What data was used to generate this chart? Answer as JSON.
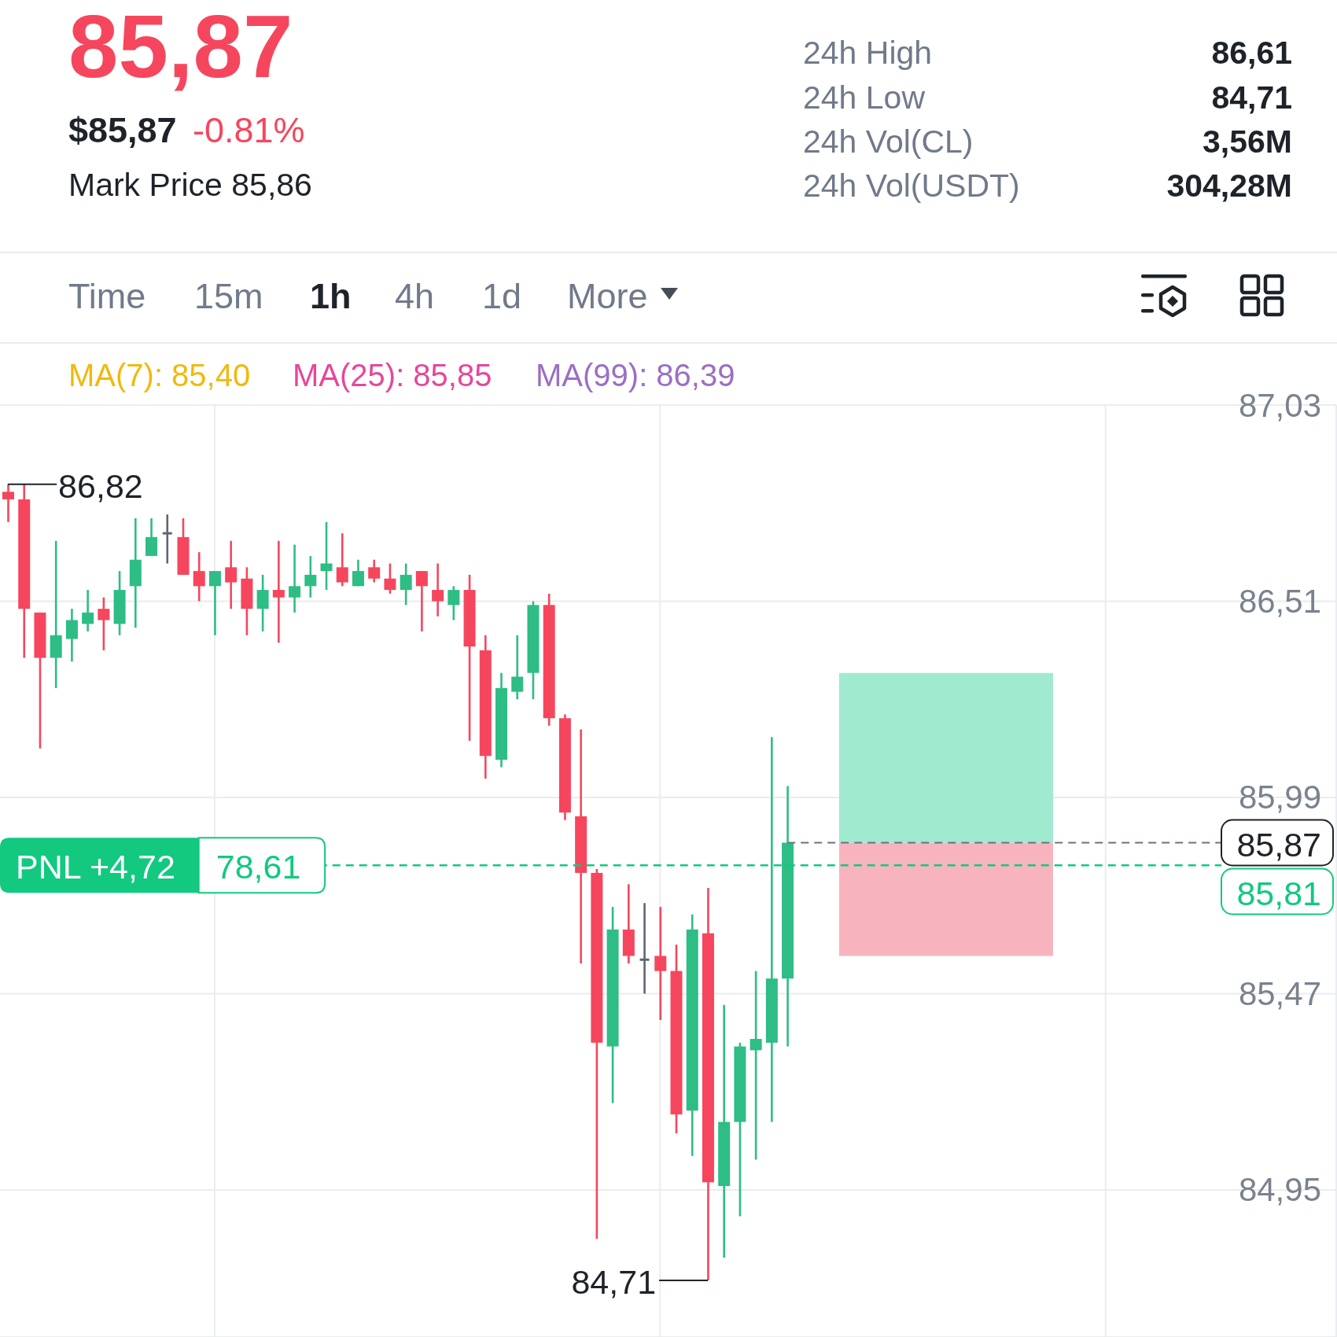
{
  "chart_data": {
    "type": "candlestick",
    "title": "85,87",
    "annotations": [
      "$85,87",
      "-0.81%",
      "Mark Price 85,86",
      "24h High",
      "86,61",
      "24h Low",
      "84,71",
      "24h Vol(CL)",
      "3,56M",
      "24h Vol(USDT)",
      "304,28M",
      "Time",
      "15m",
      "1h",
      "4h",
      "1d",
      "More",
      "MA(7): 85,40",
      "MA(25): 85,85",
      "MA(99): 86,39",
      "86,82",
      "84,71",
      "78,61",
      "85,81"
    ],
    "categories": [
      null,
      null,
      null,
      null,
      null,
      null,
      null,
      null,
      null,
      null,
      null,
      null,
      null,
      null,
      null,
      null,
      null,
      null,
      null,
      null,
      null,
      null,
      null,
      null,
      null,
      null,
      null,
      null,
      null,
      null,
      null,
      null,
      null,
      null,
      null,
      null,
      null,
      null,
      null,
      null,
      null,
      null,
      null,
      null,
      null,
      null,
      null,
      null,
      null,
      null,
      null,
      null,
      null,
      null,
      null,
      null,
      null,
      null,
      null,
      null,
      null,
      null,
      null,
      null,
      null,
      null,
      null,
      null,
      null,
      null,
      null,
      null,
      null,
      null,
      null,
      null,
      null,
      null,
      null,
      null,
      null,
      null,
      null,
      null
    ],
    "ohlc": [
      [
        86.8,
        86.82,
        86.72,
        86.78
      ],
      [
        86.78,
        86.82,
        86.36,
        86.49
      ],
      [
        86.48,
        86.48,
        86.12,
        86.36
      ],
      [
        86.36,
        86.67,
        86.28,
        86.42
      ],
      [
        86.41,
        86.49,
        86.35,
        86.46
      ],
      [
        86.45,
        86.54,
        86.43,
        86.48
      ],
      [
        86.49,
        86.52,
        86.38,
        86.46
      ],
      [
        86.45,
        86.59,
        86.42,
        86.54
      ],
      [
        86.55,
        86.73,
        86.44,
        86.62
      ],
      [
        86.63,
        86.73,
        86.63,
        86.68
      ],
      [
        86.69,
        86.74,
        86.61,
        86.69
      ],
      [
        86.68,
        86.73,
        86.58,
        86.58
      ],
      [
        86.59,
        86.64,
        86.51,
        86.55
      ],
      [
        86.55,
        86.59,
        86.42,
        86.59
      ],
      [
        86.6,
        86.67,
        86.49,
        86.56
      ],
      [
        86.57,
        86.6,
        86.42,
        86.49
      ],
      [
        86.49,
        86.58,
        86.43,
        86.54
      ],
      [
        86.54,
        86.67,
        86.4,
        86.52
      ],
      [
        86.52,
        86.66,
        86.48,
        86.55
      ],
      [
        86.55,
        86.63,
        86.52,
        86.58
      ],
      [
        86.59,
        86.72,
        86.54,
        86.61
      ],
      [
        86.6,
        86.69,
        86.55,
        86.56
      ],
      [
        86.55,
        86.62,
        86.55,
        86.59
      ],
      [
        86.6,
        86.62,
        86.56,
        86.57
      ],
      [
        86.57,
        86.61,
        86.53,
        86.54
      ],
      [
        86.54,
        86.61,
        86.5,
        86.58
      ],
      [
        86.59,
        86.59,
        86.43,
        86.55
      ],
      [
        86.54,
        86.61,
        86.47,
        86.51
      ],
      [
        86.5,
        86.55,
        86.46,
        86.54
      ],
      [
        86.54,
        86.58,
        86.14,
        86.39
      ],
      [
        86.38,
        86.42,
        86.04,
        86.1
      ],
      [
        86.09,
        86.32,
        86.07,
        86.28
      ],
      [
        86.27,
        86.42,
        86.25,
        86.31
      ],
      [
        86.32,
        86.51,
        86.25,
        86.5
      ],
      [
        86.5,
        86.53,
        86.18,
        86.2
      ],
      [
        86.2,
        86.21,
        85.93,
        85.95
      ],
      [
        85.94,
        86.17,
        85.55,
        85.79
      ],
      [
        85.79,
        85.8,
        84.82,
        85.34
      ],
      [
        85.33,
        85.7,
        85.18,
        85.64
      ],
      [
        85.64,
        85.76,
        85.55,
        85.57
      ],
      [
        85.56,
        85.71,
        85.47,
        85.56
      ],
      [
        85.57,
        85.7,
        85.4,
        85.53
      ],
      [
        85.53,
        85.6,
        85.1,
        85.15
      ],
      [
        85.16,
        85.68,
        85.04,
        85.64
      ],
      [
        85.63,
        85.75,
        84.71,
        84.97
      ],
      [
        84.96,
        85.44,
        84.77,
        85.13
      ],
      [
        85.13,
        85.34,
        84.88,
        85.33
      ],
      [
        85.32,
        85.53,
        85.03,
        85.35
      ],
      [
        85.34,
        86.15,
        85.13,
        85.51
      ],
      [
        85.51,
        86.02,
        85.33,
        85.87
      ],
      null,
      null,
      null,
      null,
      null,
      null,
      null,
      null,
      null,
      null,
      null,
      null,
      null,
      null,
      null,
      null,
      null,
      null,
      null,
      null,
      null,
      null,
      null,
      null,
      null,
      null,
      null,
      null,
      null,
      null,
      null,
      null,
      null,
      null
    ],
    "colors": [
      "#f6465d",
      "#f6465d",
      "#f6465d",
      "#2ebd85",
      "#2ebd85",
      "#2ebd85",
      "#f6465d",
      "#2ebd85",
      "#2ebd85",
      "#2ebd85",
      "#5e6673",
      "#f6465d",
      "#f6465d",
      "#2ebd85",
      "#f6465d",
      "#f6465d",
      "#2ebd85",
      "#f6465d",
      "#2ebd85",
      "#2ebd85",
      "#2ebd85",
      "#f6465d",
      "#2ebd85",
      "#f6465d",
      "#f6465d",
      "#2ebd85",
      "#f6465d",
      "#f6465d",
      "#2ebd85",
      "#f6465d",
      "#f6465d",
      "#2ebd85",
      "#2ebd85",
      "#2ebd85",
      "#f6465d",
      "#f6465d",
      "#f6465d",
      "#f6465d",
      "#2ebd85",
      "#f6465d",
      "#5e6673",
      "#f6465d",
      "#f6465d",
      "#2ebd85",
      "#f6465d",
      "#2ebd85",
      "#2ebd85",
      "#2ebd85",
      "#2ebd85",
      "#2ebd85",
      null,
      null,
      null,
      null,
      null,
      null,
      null,
      null,
      null,
      null,
      null,
      null,
      null,
      null,
      null,
      null,
      null,
      null,
      null,
      null,
      null,
      null,
      null,
      null,
      null,
      null,
      null,
      null,
      null,
      null,
      null,
      null,
      null,
      null
    ],
    "ylim": [
      84.56,
      87.03
    ],
    "yticks": [
      {
        "value": 87.03,
        "label": "87,03"
      },
      {
        "value": 86.51,
        "label": "86,51"
      },
      {
        "value": 85.99,
        "label": "85,99"
      },
      {
        "value": 85.47,
        "label": "85,47"
      },
      {
        "value": 84.95,
        "label": "84,95"
      }
    ],
    "grid": true,
    "ref_lines": [
      {
        "axis": "y",
        "value": 85.81,
        "label": "PNL +4,72",
        "color": "#12c97f",
        "line_style": "dashed"
      },
      {
        "axis": "y",
        "value": 85.87,
        "label": "85,87",
        "color": "#6b7280",
        "line_style": "dashed"
      }
    ],
    "bands": [
      {
        "axis": "y",
        "from": 85.87,
        "to": 86.32,
        "color": "#a0ead0"
      },
      {
        "axis": "y",
        "from": 85.57,
        "to": 85.87,
        "color": "#f8b4be"
      }
    ]
  }
}
